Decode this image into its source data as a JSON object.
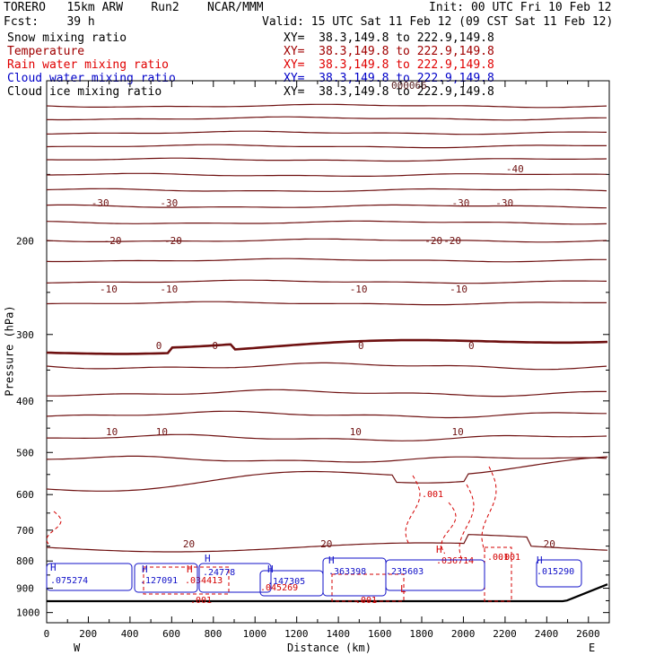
{
  "header": {
    "model": "TORERO   15km ARW    Run2    NCAR/MMM",
    "init": "Init: 00 UTC Fri 10 Feb 12",
    "fcst": "Fcst:    39 h",
    "valid": "Valid: 15 UTC Sat 11 Feb 12 (09 CST Sat 11 Feb 12)"
  },
  "fields": [
    {
      "name": "Snow mixing ratio",
      "xy": "XY=  38.3,149.8 to 222.9,149.8",
      "color": "#000000"
    },
    {
      "name": "Temperature",
      "xy": "XY=  38.3,149.8 to 222.9,149.8",
      "color": "#a00000"
    },
    {
      "name": "Rain water mixing ratio",
      "xy": "XY=  38.3,149.8 to 222.9,149.8",
      "color": "#e00000"
    },
    {
      "name": "Cloud water mixing ratio",
      "xy": "XY=  38.3,149.8 to 222.9,149.8",
      "color": "#0000c8"
    },
    {
      "name": "Cloud ice mixing ratio",
      "xy": "XY=  38.3,149.8 to 222.9,149.8",
      "color": "#000000"
    }
  ],
  "overlap_text": "000066",
  "chart_data": {
    "type": "line",
    "xlabel": "Distance (km)",
    "ylabel": "Pressure (hPa)",
    "xlim": [
      0,
      2700
    ],
    "ylim": [
      1045,
      100
    ],
    "y_scale": "log",
    "x_ticks": [
      0,
      200,
      400,
      600,
      800,
      1000,
      1200,
      1400,
      1600,
      1800,
      2000,
      2200,
      2400,
      2600
    ],
    "y_ticks": [
      200,
      300,
      400,
      500,
      600,
      700,
      800,
      900,
      1000
    ],
    "x_end_labels": {
      "left": "W",
      "right": "E"
    },
    "temperature_isotherms": [
      {
        "label": "-40",
        "label_positions_km": [
          2230
        ]
      },
      {
        "label": "-30",
        "label_positions_km": [
          240,
          570,
          1970,
          2180
        ]
      },
      {
        "label": "-20",
        "label_positions_km": [
          300,
          590,
          1840,
          1930
        ]
      },
      {
        "label": "-10",
        "label_positions_km": [
          280,
          570,
          1480,
          1960
        ]
      },
      {
        "label": "0",
        "label_positions_km": [
          550,
          820,
          1520,
          2050
        ]
      },
      {
        "label": "10",
        "label_positions_km": [
          310,
          550,
          1480,
          1970
        ]
      },
      {
        "label": "20",
        "label_positions_km": [
          680,
          1340,
          2410
        ]
      }
    ],
    "rain_labels": [
      ".001",
      ".001",
      ".001",
      ".001",
      ".045269",
      ".034413",
      ".036714",
      ".001"
    ],
    "cloud_water_labels": [
      ".075274",
      ".127091",
      ".24778",
      ".147305",
      ".363398",
      ".235603",
      ".015290"
    ],
    "high_markers": [
      "H",
      "H",
      "H",
      "H",
      "H",
      "H",
      "H",
      "H"
    ],
    "low_markers": [
      "L"
    ]
  }
}
